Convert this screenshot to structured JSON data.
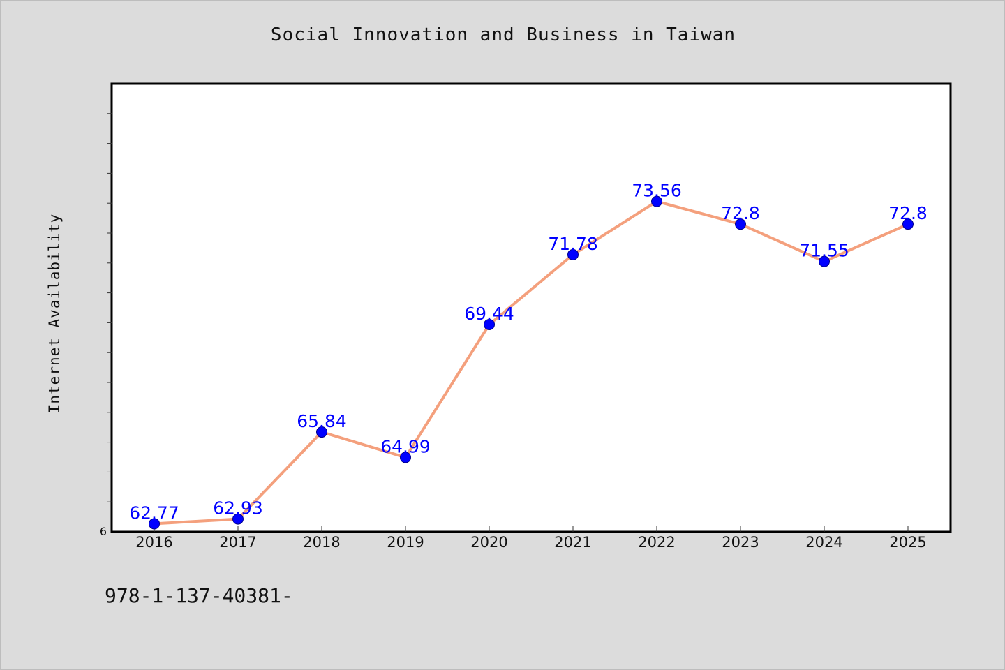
{
  "chart_data": {
    "type": "line",
    "title": "Social Innovation and Business in Taiwan",
    "xlabel": "",
    "ylabel": "Internet Availability",
    "categories": [
      "2016",
      "2017",
      "2018",
      "2019",
      "2020",
      "2021",
      "2022",
      "2023",
      "2024",
      "2025"
    ],
    "series": [
      {
        "values": [
          62.77,
          62.93,
          65.84,
          64.99,
          69.44,
          71.78,
          73.56,
          72.8,
          71.55,
          72.8
        ],
        "data_labels": [
          "62.77",
          "62.93",
          "65.84",
          "64.99",
          "69.44",
          "71.78",
          "73.56",
          "72.8",
          "71.55",
          "72.8"
        ],
        "line_color": "#f4a07d",
        "marker_color": "#0000ff",
        "label_color": "#0000ff"
      }
    ],
    "ylim": [
      62.5,
      77.5
    ],
    "y_tick_labels": [
      "6"
    ],
    "grid": false,
    "legend": "none"
  },
  "footnote": "978-1-137-40381-"
}
